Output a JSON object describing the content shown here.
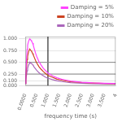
{
  "chart_data": {
    "type": "line",
    "xlabel": "frequency time (s)",
    "x": [
      0.0,
      0.02,
      0.05,
      0.08,
      0.1,
      0.12,
      0.15,
      0.18,
      0.2,
      0.22,
      0.25,
      0.28,
      0.3,
      0.32,
      0.35,
      0.4,
      0.45,
      0.5,
      0.6,
      0.7,
      0.8,
      0.9,
      1.0,
      1.2,
      1.4,
      1.6,
      1.8,
      2.0,
      2.5,
      3.0,
      3.5,
      4.0
    ],
    "series": [
      {
        "name": "Damping = 5%",
        "color": "#ff44ff",
        "values": [
          0.05,
          0.25,
          0.55,
          0.78,
          0.86,
          0.91,
          0.96,
          0.99,
          1.0,
          0.99,
          0.97,
          0.95,
          0.93,
          0.91,
          0.87,
          0.78,
          0.7,
          0.63,
          0.52,
          0.44,
          0.37,
          0.32,
          0.27,
          0.21,
          0.17,
          0.14,
          0.12,
          0.1,
          0.075,
          0.06,
          0.052,
          0.048
        ]
      },
      {
        "name": "Damping = 10%",
        "color": "#cc4422",
        "values": [
          0.05,
          0.18,
          0.38,
          0.56,
          0.63,
          0.68,
          0.74,
          0.77,
          0.78,
          0.77,
          0.75,
          0.73,
          0.71,
          0.69,
          0.66,
          0.6,
          0.54,
          0.49,
          0.41,
          0.35,
          0.3,
          0.26,
          0.22,
          0.18,
          0.14,
          0.12,
          0.1,
          0.088,
          0.068,
          0.056,
          0.049,
          0.044
        ]
      },
      {
        "name": "Damping = 20%",
        "color": "#aa66bb",
        "values": [
          0.05,
          0.11,
          0.22,
          0.32,
          0.37,
          0.41,
          0.45,
          0.48,
          0.5,
          0.49,
          0.48,
          0.47,
          0.46,
          0.45,
          0.43,
          0.39,
          0.36,
          0.33,
          0.28,
          0.24,
          0.21,
          0.18,
          0.16,
          0.13,
          0.106,
          0.09,
          0.077,
          0.067,
          0.053,
          0.044,
          0.039,
          0.036
        ]
      }
    ],
    "xlim": [
      0.0,
      4.0
    ],
    "ylim": [
      0.0,
      1.05
    ],
    "xticks": [
      {
        "value": 0.0,
        "label": "0.0000"
      },
      {
        "value": 0.5,
        "label": "0.500"
      },
      {
        "value": 1.0,
        "label": "1.000"
      },
      {
        "value": 1.5,
        "label": "1.500"
      },
      {
        "value": 2.0,
        "label": "2.000"
      },
      {
        "value": 2.5,
        "label": "2.500"
      },
      {
        "value": 3.0,
        "label": "3.000"
      },
      {
        "value": 3.5,
        "label": "3.500"
      },
      4
    ],
    "yticks": [
      {
        "value": 0.0,
        "label": "0.000"
      },
      {
        "value": 0.1,
        "label": "0.100"
      },
      {
        "value": 0.25,
        "label": "0.250"
      },
      {
        "value": 0.5,
        "label": "0.500"
      },
      {
        "value": 0.75,
        "label": "0.750"
      },
      {
        "value": 1.0,
        "label": "1.000"
      }
    ],
    "grid": "y",
    "legend": "upper right",
    "reference_lines": [
      {
        "axis": "x",
        "value": 1.0,
        "color": "#000000"
      },
      {
        "axis": "y",
        "value": 0.5,
        "color": "#888888"
      },
      {
        "axis": "y",
        "value": 0.25,
        "color": "#888888"
      }
    ]
  }
}
